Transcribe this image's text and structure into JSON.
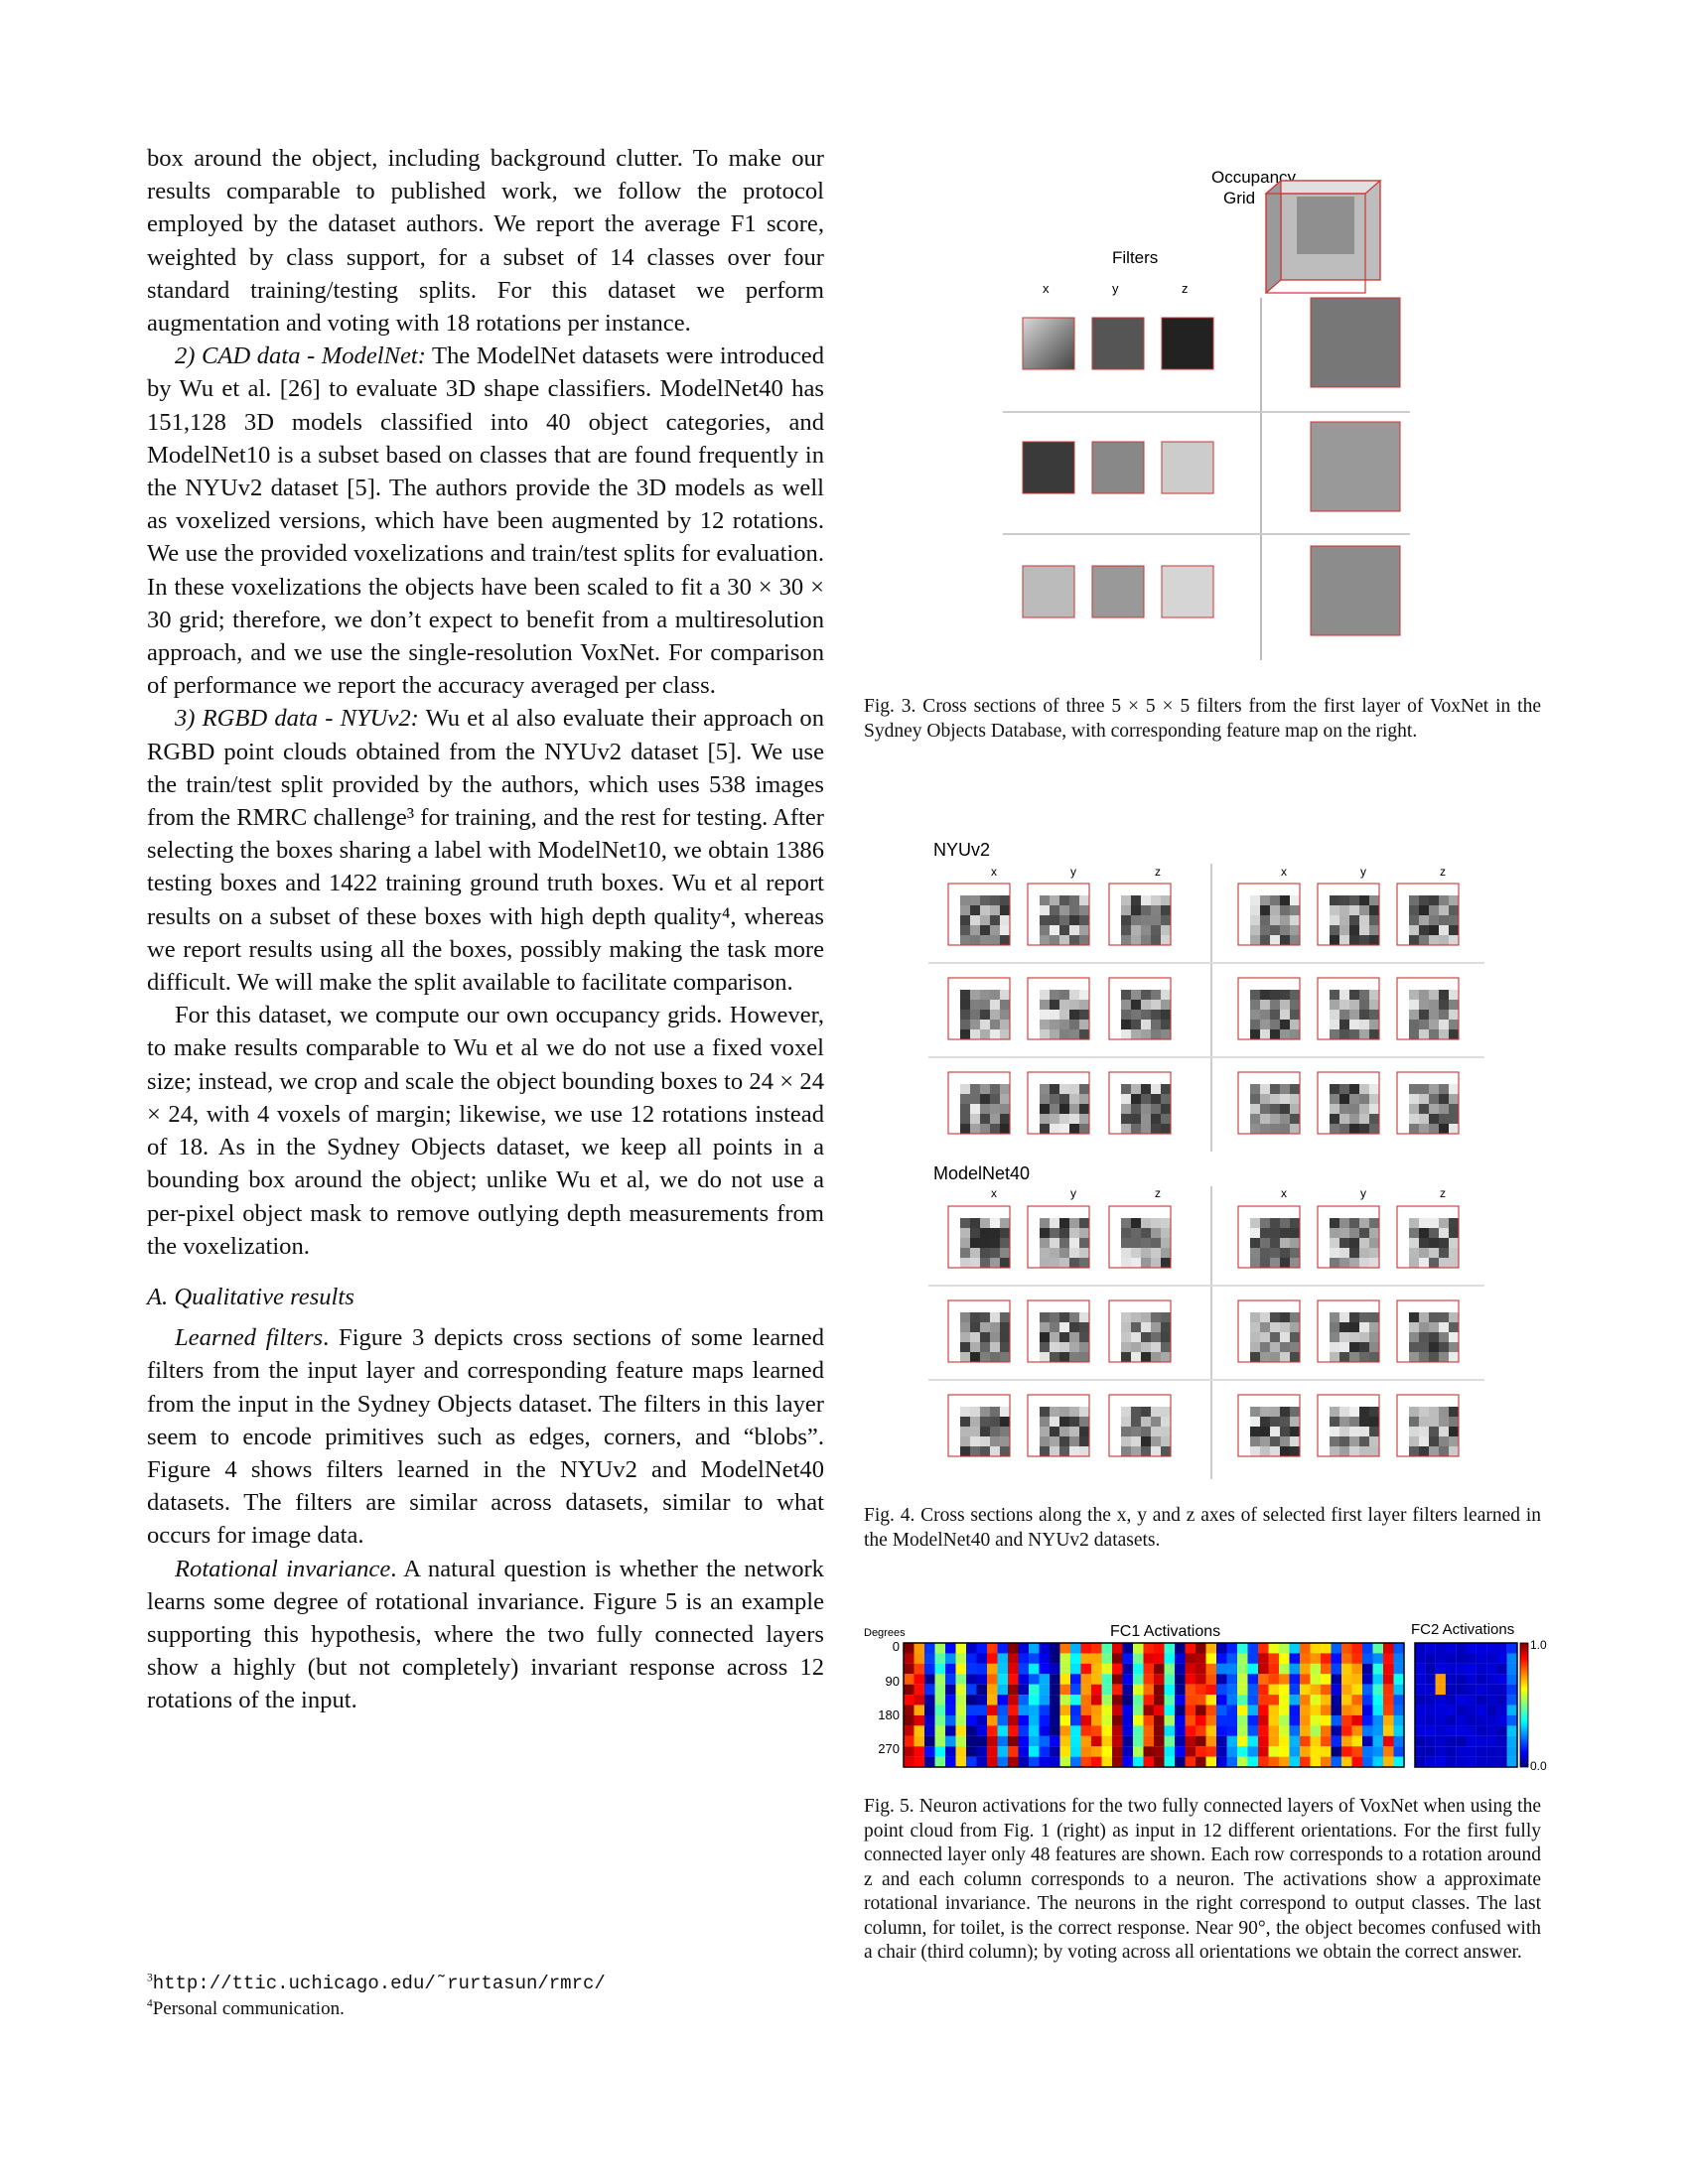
{
  "left_column": {
    "p1": "box around the object, including background clutter. To make our results comparable to published work, we follow the protocol employed by the dataset authors. We report the average F1 score, weighted by class support, for a subset of 14 classes over four standard training/testing splits. For this dataset we perform augmentation and voting with 18 rotations per instance.",
    "p2_head": "2) CAD data - ModelNet:",
    "p2": "The ModelNet datasets were introduced by Wu et al. [26] to evaluate 3D shape classifiers. ModelNet40 has 151,128 3D models classified into 40 object categories, and ModelNet10 is a subset based on classes that are found frequently in the NYUv2 dataset [5]. The authors provide the 3D models as well as voxelized versions, which have been augmented by 12 rotations. We use the provided voxelizations and train/test splits for evaluation. In these voxelizations the objects have been scaled to fit a 30 × 30 × 30 grid; therefore, we don’t expect to benefit from a multiresolution approach, and we use the single-resolution VoxNet. For comparison of performance we report the accuracy averaged per class.",
    "p3_head": "3) RGBD data - NYUv2:",
    "p3": "Wu et al also evaluate their approach on RGBD point clouds obtained from the NYUv2 dataset [5]. We use the train/test split provided by the authors, which uses 538 images from the RMRC challenge³ for training, and the rest for testing. After selecting the boxes sharing a label with ModelNet10, we obtain 1386 testing boxes and 1422 training ground truth boxes. Wu et al report results on a subset of these boxes with high depth quality⁴, whereas we report results using all the boxes, possibly making the task more difficult. We will make the split available to facilitate comparison.",
    "p4": "For this dataset, we compute our own occupancy grids. However, to make results comparable to Wu et al we do not use a fixed voxel size; instead, we crop and scale the object bounding boxes to 24 × 24 × 24, with 4 voxels of margin; likewise, we use 12 rotations instead of 18. As in the Sydney Objects dataset, we keep all points in a bounding box around the object; unlike Wu et al, we do not use a per-pixel object mask to remove outlying depth measurements from the voxelization.",
    "section_title": "A. Qualitative results",
    "p5_head": "Learned filters",
    "p5": ". Figure 3 depicts cross sections of some learned filters from the input layer and corresponding feature maps learned from the input in the Sydney Objects dataset. The filters in this layer seem to encode primitives such as edges, corners, and “blobs”. Figure 4 shows filters learned in the NYUv2 and ModelNet40 datasets. The filters are similar across datasets, similar to what occurs for image data.",
    "p6_head": "Rotational invariance",
    "p6": ". A natural question is whether the network learns some degree of rotational invariance. Figure 5 is an example supporting this hypothesis, where the two fully connected layers show a highly (but not completely) invariant response across 12 rotations of the input."
  },
  "footnotes": {
    "fn3_mark": "3",
    "fn3": "http://ttic.uchicago.edu/˜rurtasun/rmrc/",
    "fn4_mark": "4",
    "fn4": "Personal communication."
  },
  "fig3": {
    "label_occupancy_1": "Occupancy",
    "label_occupancy_2": "Grid",
    "label_filters": "Filters",
    "axis_x": "x",
    "axis_y": "y",
    "axis_z": "z",
    "caption": "Fig. 3.   Cross sections of three 5 × 5 × 5 filters from the first layer of VoxNet in the Sydney Objects Database, with corresponding feature map on the right."
  },
  "fig4": {
    "label_nyu": "NYUv2",
    "label_modelnet": "ModelNet40",
    "axis_x": "x",
    "axis_y": "y",
    "axis_z": "z",
    "caption": "Fig. 4.   Cross sections along the x, y and z axes of selected first layer filters learned in the ModelNet40 and NYUv2 datasets."
  },
  "fig5": {
    "title_fc1": "FC1 Activations",
    "title_fc2": "FC2 Activations",
    "ylabel": "Degrees",
    "yticks": [
      "0",
      "90",
      "180",
      "270"
    ],
    "colorbar_max": "1.0",
    "colorbar_min": "0.0",
    "caption": "Fig. 5.   Neuron activations for the two fully connected layers of VoxNet when using the point cloud from Fig. 1 (right) as input in 12 different orientations. For the first fully connected layer only 48 features are shown. Each row corresponds to a rotation around z and each column corresponds to a neuron. The activations show a approximate rotational invariance. The neurons in the right correspond to output classes. The last column, for toilet, is the correct response. Near 90°, the object becomes confused with a chair (third column); by voting across all orientations we obtain the correct answer."
  }
}
